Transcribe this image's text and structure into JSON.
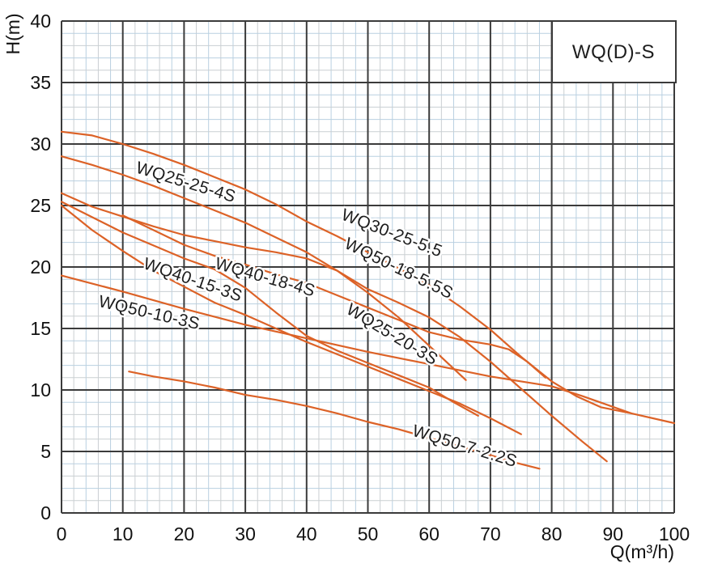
{
  "title_box": {
    "label": "WQ(D)-S"
  },
  "axes": {
    "x": {
      "label": "Q(m³/h)",
      "min": 0,
      "max": 100,
      "major_step": 10,
      "minor_step": 2,
      "ticks": [
        0,
        10,
        20,
        30,
        40,
        50,
        60,
        70,
        80,
        90,
        100
      ]
    },
    "y": {
      "label": "H(m)",
      "min": 0,
      "max": 40,
      "major_step": 5,
      "minor_step": 1,
      "ticks": [
        0,
        5,
        10,
        15,
        20,
        25,
        30,
        35,
        40
      ]
    }
  },
  "colors": {
    "curve": "#dc6227",
    "grid_major": "#3b3b3b",
    "grid_minor_gray": "#cacfd2",
    "grid_minor_blue": "#b9d0e1",
    "text": "#111111",
    "background": "#ffffff"
  },
  "chart_data": {
    "type": "line",
    "title": "WQ(D)-S",
    "xlabel": "Q(m³/h)",
    "ylabel": "H(m)",
    "xlim": [
      0,
      100
    ],
    "ylim": [
      0,
      40
    ],
    "grid": true,
    "legend_position": "top-right-box",
    "series": [
      {
        "name": "WQ30-25-5.5",
        "points": [
          [
            0,
            31
          ],
          [
            5,
            30.7
          ],
          [
            10,
            30
          ],
          [
            15,
            29.2
          ],
          [
            20,
            28.3
          ],
          [
            25,
            27.3
          ],
          [
            30,
            26.3
          ],
          [
            35,
            25.1
          ],
          [
            40,
            23.7
          ],
          [
            45,
            22.5
          ],
          [
            50,
            21.2
          ],
          [
            55,
            19.9
          ],
          [
            60,
            18.5
          ],
          [
            65,
            16.8
          ],
          [
            70,
            14.9
          ],
          [
            75,
            12.7
          ],
          [
            80,
            10.7
          ],
          [
            84,
            9.5
          ],
          [
            88,
            8.6
          ],
          [
            93,
            8.1
          ],
          [
            100,
            7.3
          ]
        ],
        "label": {
          "q": 45.5,
          "h": 23.9,
          "rot": 21
        }
      },
      {
        "name": "WQ25-25-4S",
        "points": [
          [
            0,
            29
          ],
          [
            5,
            28.3
          ],
          [
            10,
            27.5
          ],
          [
            15,
            26.6
          ],
          [
            20,
            25.6
          ],
          [
            25,
            24.6
          ],
          [
            30,
            23.6
          ],
          [
            35,
            22.4
          ],
          [
            40,
            21.2
          ],
          [
            45,
            19.7
          ],
          [
            50,
            17.9
          ],
          [
            55,
            15.9
          ],
          [
            60,
            13.6
          ],
          [
            63,
            12.2
          ],
          [
            66,
            10.8
          ]
        ],
        "label": {
          "q": 12.0,
          "h": 27.7,
          "rot": 17
        }
      },
      {
        "name": "WQ50-18-5.5S",
        "points": [
          [
            0,
            26
          ],
          [
            5,
            24.9
          ],
          [
            10,
            24.1
          ],
          [
            15,
            23.3
          ],
          [
            20,
            22.6
          ],
          [
            25,
            22.1
          ],
          [
            30,
            21.6
          ],
          [
            35,
            21.2
          ],
          [
            40,
            20.7
          ],
          [
            45,
            19.7
          ],
          [
            50,
            18.2
          ],
          [
            55,
            17.1
          ],
          [
            60,
            15.9
          ],
          [
            65,
            14.3
          ],
          [
            70,
            12.3
          ],
          [
            75,
            10.1
          ],
          [
            80,
            7.9
          ],
          [
            85,
            5.8
          ],
          [
            89,
            4.2
          ]
        ],
        "label": {
          "q": 46.0,
          "h": 21.6,
          "rot": 26
        }
      },
      {
        "name": "WQ40-18-4S",
        "points": [
          [
            10,
            24.2
          ],
          [
            15,
            23.0
          ],
          [
            20,
            21.8
          ],
          [
            25,
            20.9
          ],
          [
            30,
            20.2
          ],
          [
            35,
            19.4
          ],
          [
            40,
            18.7
          ],
          [
            45,
            17.7
          ],
          [
            50,
            16.7
          ],
          [
            55,
            15.7
          ],
          [
            60,
            14.7
          ],
          [
            65,
            14.1
          ],
          [
            70,
            13.7
          ],
          [
            73,
            13.3
          ],
          [
            76,
            12.3
          ],
          [
            79,
            11.0
          ]
        ],
        "label": {
          "q": 24.9,
          "h": 19.9,
          "rot": 16
        }
      },
      {
        "name": "WQ40-15-3S",
        "points": [
          [
            0,
            25
          ],
          [
            5,
            23
          ],
          [
            10,
            21.3
          ],
          [
            15,
            19.7
          ],
          [
            20,
            18.4
          ],
          [
            25,
            17.1
          ],
          [
            30,
            16.1
          ],
          [
            35,
            15.0
          ],
          [
            40,
            13.9
          ],
          [
            45,
            12.9
          ],
          [
            50,
            11.9
          ],
          [
            55,
            10.9
          ],
          [
            60,
            9.9
          ],
          [
            65,
            8.9
          ],
          [
            70,
            7.7
          ],
          [
            75,
            6.4
          ]
        ],
        "label": {
          "q": 13.2,
          "h": 19.9,
          "rot": 19
        }
      },
      {
        "name": "WQ25-20-3S",
        "points": [
          [
            0,
            25.3
          ],
          [
            10,
            22.8
          ],
          [
            20,
            20.7
          ],
          [
            25,
            19.8
          ],
          [
            30,
            18.3
          ],
          [
            35,
            16.3
          ],
          [
            40,
            14.4
          ],
          [
            45,
            13.2
          ],
          [
            50,
            12.2
          ],
          [
            55,
            11.2
          ],
          [
            60,
            10.2
          ],
          [
            64,
            9.0
          ],
          [
            68,
            7.9
          ]
        ],
        "label": {
          "q": 46.3,
          "h": 16.3,
          "rot": 31
        }
      },
      {
        "name": "WQ50-10-3S",
        "points": [
          [
            0,
            19.3
          ],
          [
            10,
            18.0
          ],
          [
            20,
            16.6
          ],
          [
            30,
            15.3
          ],
          [
            40,
            14.2
          ],
          [
            50,
            13.1
          ],
          [
            60,
            12.1
          ],
          [
            65,
            11.6
          ],
          [
            70,
            11.1
          ],
          [
            75,
            10.7
          ],
          [
            80,
            10.3
          ],
          [
            85,
            9.5
          ],
          [
            89,
            8.8
          ],
          [
            93,
            8.1
          ]
        ],
        "label": {
          "q": 5.9,
          "h": 16.8,
          "rot": 13
        }
      },
      {
        "name": "WQ50-7-2.2S",
        "points": [
          [
            11,
            11.5
          ],
          [
            15,
            11.1
          ],
          [
            20,
            10.7
          ],
          [
            25,
            10.2
          ],
          [
            30,
            9.6
          ],
          [
            35,
            9.2
          ],
          [
            40,
            8.7
          ],
          [
            45,
            8.1
          ],
          [
            50,
            7.4
          ],
          [
            55,
            6.8
          ],
          [
            60,
            6.1
          ],
          [
            65,
            5.4
          ],
          [
            70,
            4.7
          ],
          [
            74,
            4.1
          ],
          [
            78,
            3.6
          ]
        ],
        "label": {
          "q": 57.1,
          "h": 6.3,
          "rot": 17
        }
      }
    ]
  }
}
